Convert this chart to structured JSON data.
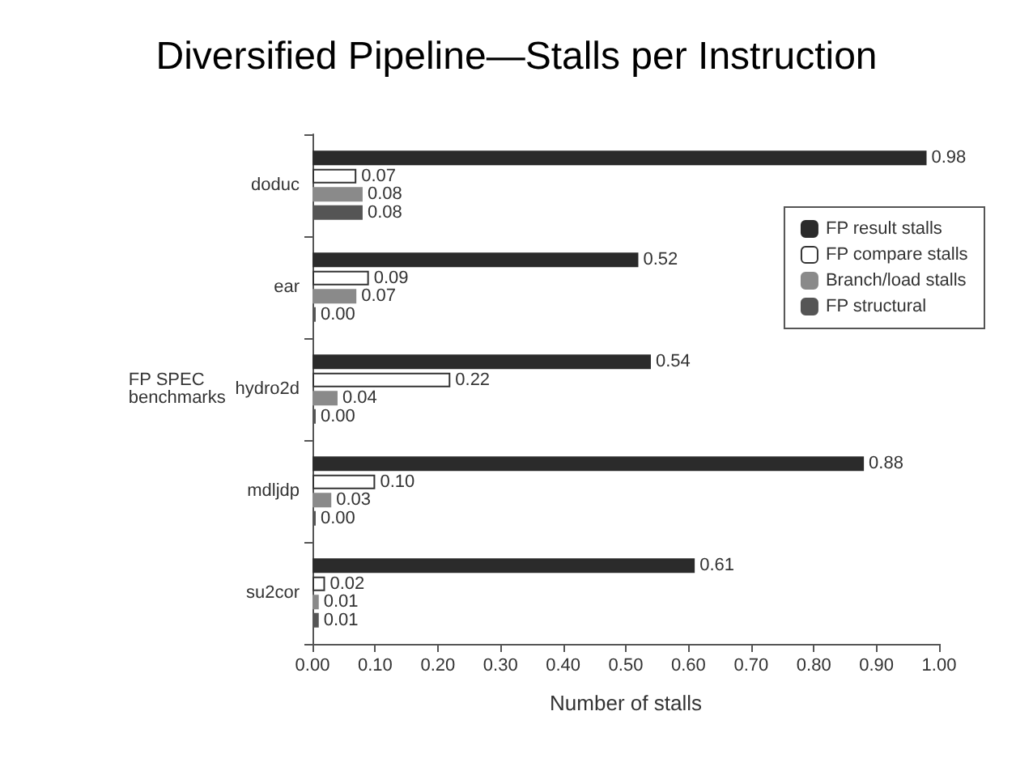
{
  "chart_data": {
    "type": "bar",
    "orientation": "horizontal",
    "title": "Diversified Pipeline—Stalls per Instruction",
    "xlabel": "Number of stalls",
    "ylabel": "FP SPEC\nbenchmarks",
    "categories": [
      "doduc",
      "ear",
      "hydro2d",
      "mdljdp",
      "su2cor"
    ],
    "series": [
      {
        "name": "FP result stalls",
        "color": "#2b2b2b",
        "values": [
          0.98,
          0.52,
          0.54,
          0.88,
          0.61
        ],
        "value_labels": [
          "0.98",
          "0.52",
          "0.54",
          "0.88",
          "0.61"
        ]
      },
      {
        "name": "FP compare stalls",
        "color": "#ffffff",
        "values": [
          0.07,
          0.09,
          0.22,
          0.1,
          0.02
        ],
        "value_labels": [
          "0.07",
          "0.09",
          "0.22",
          "0.10",
          "0.02"
        ]
      },
      {
        "name": "Branch/load stalls",
        "color": "#8a8a8a",
        "values": [
          0.08,
          0.07,
          0.04,
          0.03,
          0.01
        ],
        "value_labels": [
          "0.08",
          "0.07",
          "0.04",
          "0.03",
          "0.01"
        ]
      },
      {
        "name": "FP structural",
        "color": "#555555",
        "values": [
          0.08,
          0.0,
          0.0,
          0.0,
          0.01
        ],
        "value_labels": [
          "0.08",
          "0.00",
          "0.00",
          "0.00",
          "0.01"
        ]
      }
    ],
    "xlim": [
      0,
      1
    ],
    "xticks": [
      {
        "value": 0,
        "label": "0.00"
      },
      {
        "value": 0.1,
        "label": "0.10"
      },
      {
        "value": 0.2,
        "label": "0.20"
      },
      {
        "value": 0.3,
        "label": "0.30"
      },
      {
        "value": 0.4,
        "label": "0.40"
      },
      {
        "value": 0.5,
        "label": "0.50"
      },
      {
        "value": 0.6,
        "label": "0.60"
      },
      {
        "value": 0.7,
        "label": "0.70"
      },
      {
        "value": 0.8,
        "label": "0.80"
      },
      {
        "value": 0.9,
        "label": "0.90"
      },
      {
        "value": 1,
        "label": "1.00"
      }
    ],
    "grid": false,
    "legend": "top right"
  }
}
